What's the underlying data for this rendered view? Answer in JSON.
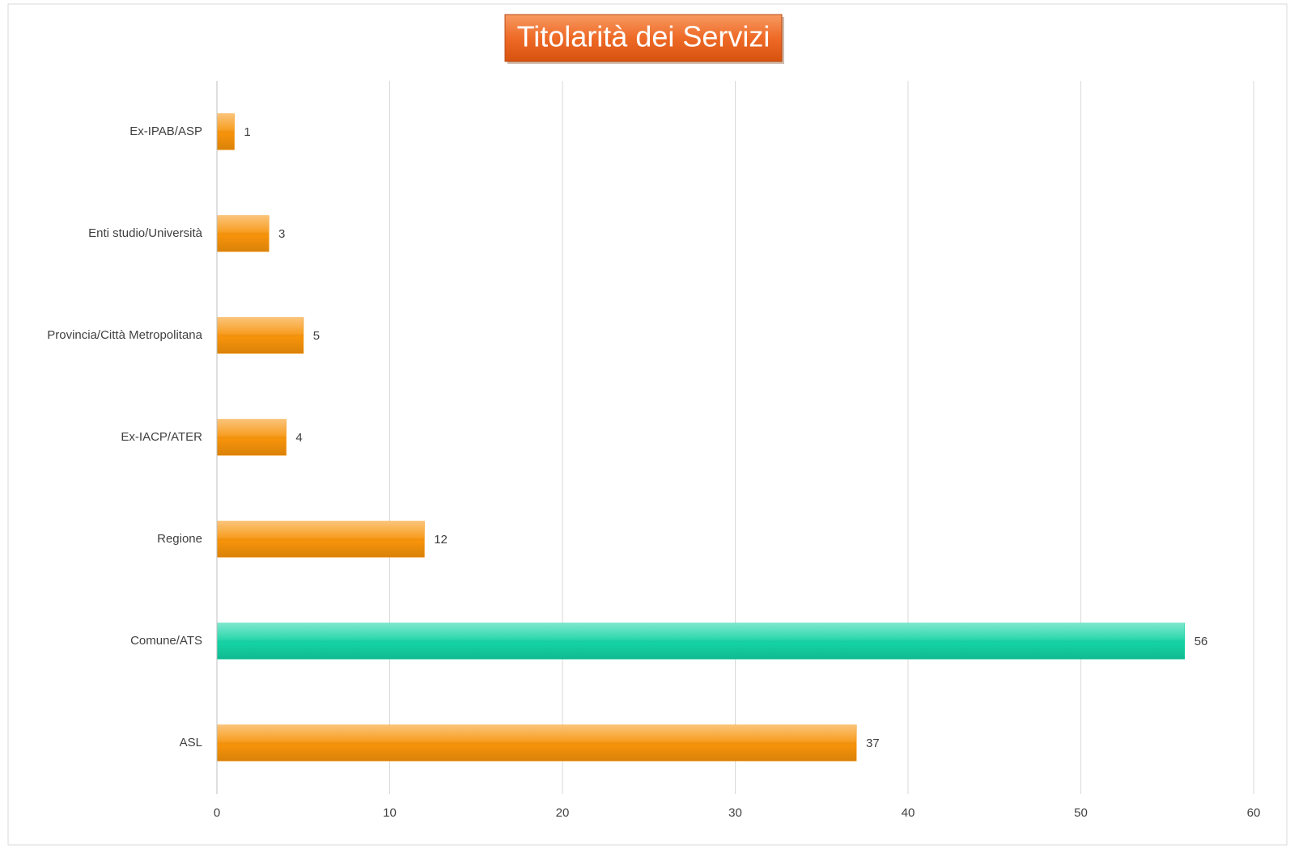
{
  "chart_data": {
    "type": "barh",
    "title": "Titolarità dei Servizi",
    "categories": [
      "Ex-IPAB/ASP",
      "Enti studio/Università",
      "Provincia/Città Metropolitana",
      "Ex-IACP/ATER",
      "Regione",
      "Comune/ATS",
      "ASL"
    ],
    "values": [
      1,
      3,
      5,
      4,
      12,
      56,
      37
    ],
    "colors": [
      "#f7930a",
      "#f7930a",
      "#f7930a",
      "#f7930a",
      "#f7930a",
      "#14d3a4",
      "#f7930a"
    ],
    "xlim": [
      0,
      60
    ],
    "xticks": [
      0,
      10,
      20,
      30,
      40,
      50,
      60
    ],
    "grid": true
  }
}
